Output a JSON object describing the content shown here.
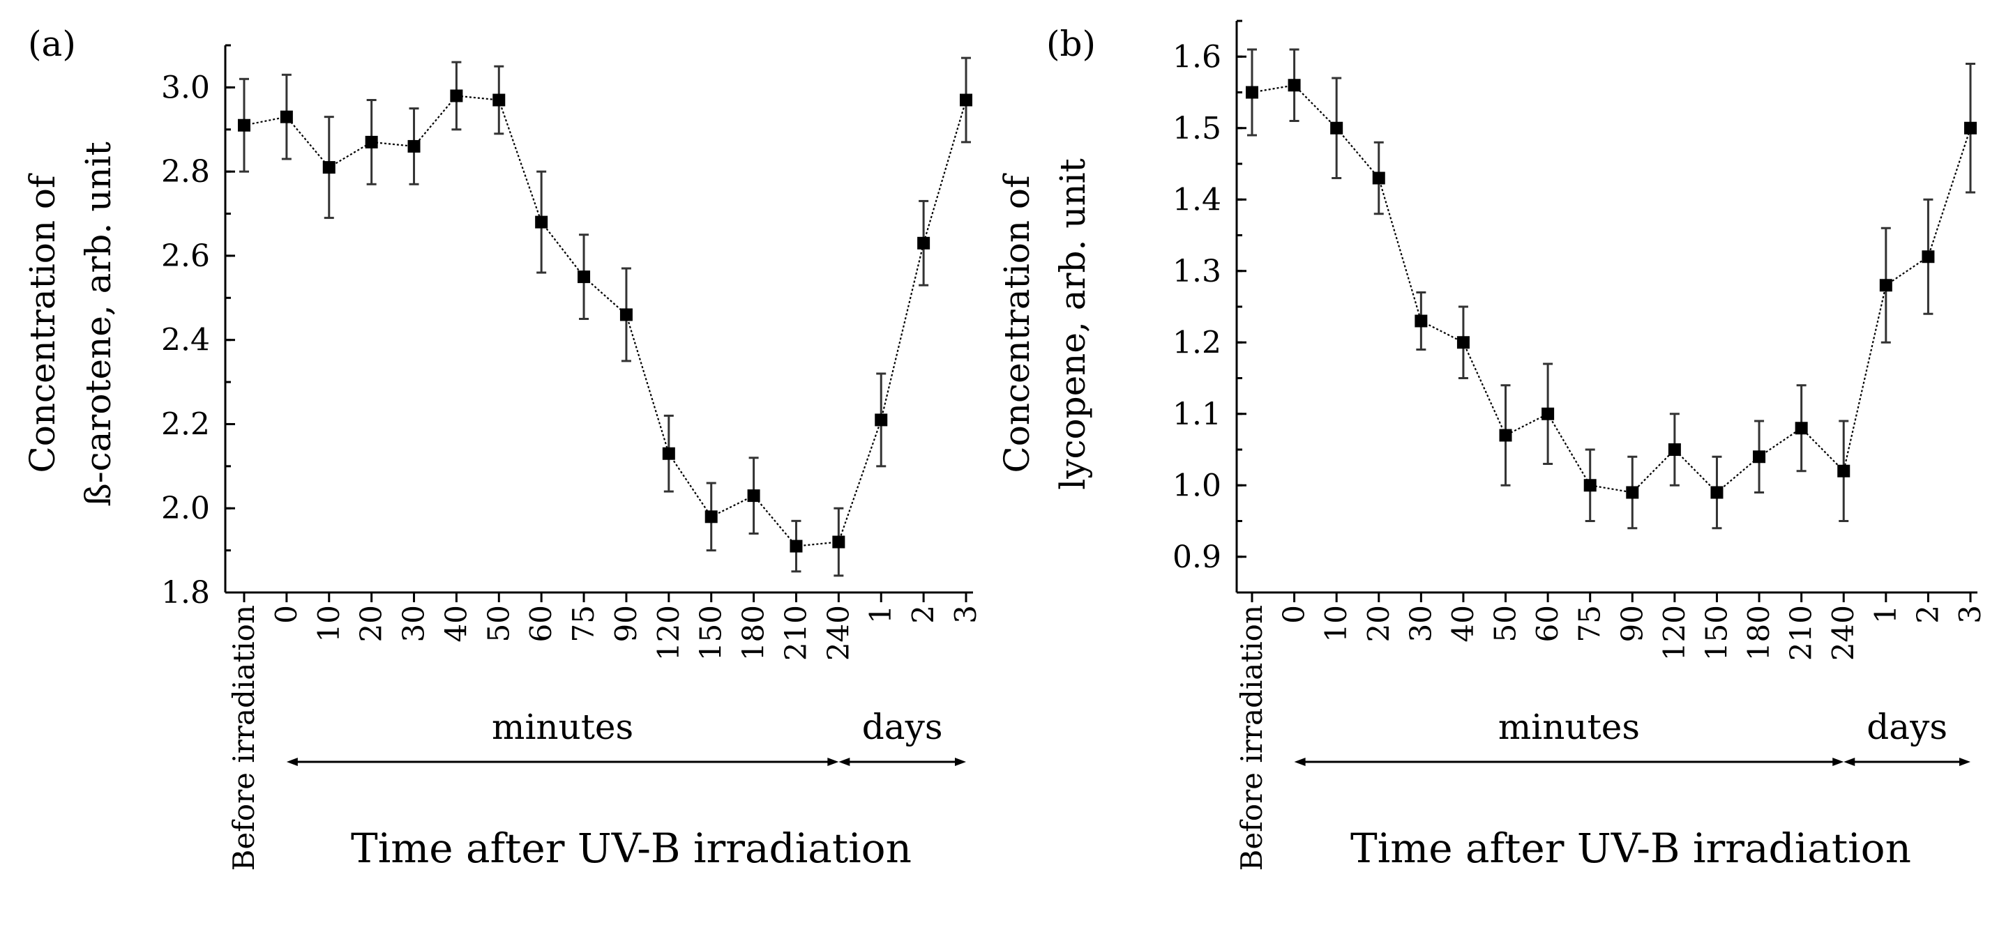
{
  "chart_data": [
    {
      "panel": "(a)",
      "type": "line",
      "title": "",
      "ylabel_line1": "Concentration of",
      "ylabel_line2": "ß-carotene, arb. unit",
      "xlabel": "Time after UV-B irradiation",
      "categories": [
        "Before irradiation",
        "0",
        "10",
        "20",
        "30",
        "40",
        "50",
        "60",
        "75",
        "90",
        "120",
        "150",
        "180",
        "210",
        "240",
        "1",
        "2",
        "3"
      ],
      "values": [
        2.91,
        2.93,
        2.81,
        2.87,
        2.86,
        2.98,
        2.97,
        2.68,
        2.55,
        2.46,
        2.13,
        1.98,
        2.03,
        1.91,
        1.92,
        2.21,
        2.63,
        2.97
      ],
      "errors": [
        0.11,
        0.1,
        0.12,
        0.1,
        0.09,
        0.08,
        0.08,
        0.12,
        0.1,
        0.11,
        0.09,
        0.08,
        0.09,
        0.06,
        0.08,
        0.11,
        0.1,
        0.1
      ],
      "ylim": [
        1.8,
        3.1
      ],
      "yticks": [
        "1.8",
        "2.0",
        "2.2",
        "2.4",
        "2.6",
        "2.8",
        "3.0"
      ],
      "groups": [
        {
          "label": "minutes",
          "from": 1,
          "to": 14
        },
        {
          "label": "days",
          "from": 14,
          "to": 17
        }
      ],
      "grid": false
    },
    {
      "panel": "(b)",
      "type": "line",
      "title": "",
      "ylabel_line1": "Concentration of",
      "ylabel_line2": "lycopene, arb. unit",
      "xlabel": "Time after UV-B irradiation",
      "categories": [
        "Before irradiation",
        "0",
        "10",
        "20",
        "30",
        "40",
        "50",
        "60",
        "75",
        "90",
        "120",
        "150",
        "180",
        "210",
        "240",
        "1",
        "2",
        "3"
      ],
      "values": [
        1.55,
        1.56,
        1.5,
        1.43,
        1.23,
        1.2,
        1.07,
        1.1,
        1.0,
        0.99,
        1.05,
        0.99,
        1.04,
        1.08,
        1.02,
        1.28,
        1.32,
        1.5
      ],
      "errors": [
        0.06,
        0.05,
        0.07,
        0.05,
        0.04,
        0.05,
        0.07,
        0.07,
        0.05,
        0.05,
        0.05,
        0.05,
        0.05,
        0.06,
        0.07,
        0.08,
        0.08,
        0.09
      ],
      "ylim": [
        0.85,
        1.65
      ],
      "yticks": [
        "0.9",
        "1.0",
        "1.1",
        "1.2",
        "1.3",
        "1.4",
        "1.5",
        "1.6"
      ],
      "groups": [
        {
          "label": "minutes",
          "from": 1,
          "to": 14
        },
        {
          "label": "days",
          "from": 14,
          "to": 17
        }
      ],
      "grid": false
    }
  ]
}
